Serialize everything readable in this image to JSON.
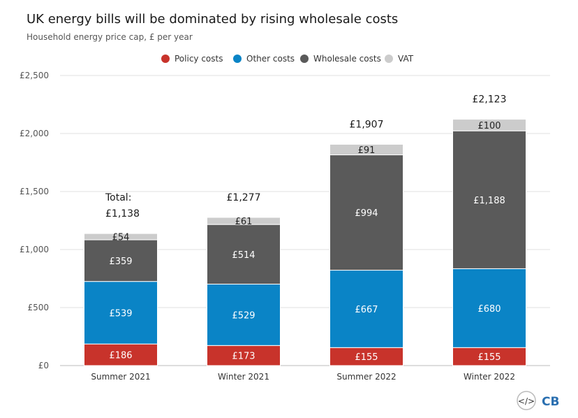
{
  "chart_data": {
    "type": "bar",
    "stacked": true,
    "title": "UK energy bills will be dominated by rising wholesale costs",
    "subtitle": "Household energy price cap, £ per year",
    "categories": [
      "Summer 2021",
      "Winter 2021",
      "Summer 2022",
      "Winter 2022"
    ],
    "series": [
      {
        "name": "Policy costs",
        "color": "#c8332b",
        "values": [
          186,
          173,
          155,
          155
        ],
        "labels": [
          "£186",
          "£173",
          "£155",
          "£155"
        ]
      },
      {
        "name": "Other costs",
        "color": "#0a84c6",
        "values": [
          539,
          529,
          667,
          680
        ],
        "labels": [
          "£539",
          "£529",
          "£667",
          "£680"
        ]
      },
      {
        "name": "Wholesale costs",
        "color": "#5a5a5a",
        "values": [
          359,
          514,
          994,
          1188
        ],
        "labels": [
          "£359",
          "£514",
          "£994",
          "£1,188"
        ]
      },
      {
        "name": "VAT",
        "color": "#cccccc",
        "values": [
          54,
          61,
          91,
          100
        ],
        "labels": [
          "£54",
          "£61",
          "£91",
          "£100"
        ]
      }
    ],
    "totals": [
      1138,
      1277,
      1907,
      2123
    ],
    "total_labels": [
      "£1,138",
      "£1,277",
      "£1,907",
      "£2,123"
    ],
    "total_prefix": "Total:",
    "yticks": [
      0,
      500,
      1000,
      1500,
      2000,
      2500
    ],
    "ytick_labels": [
      "£0",
      "£500",
      "£1,000",
      "£1,500",
      "£2,000",
      "£2,500"
    ],
    "ylim": [
      0,
      2500
    ],
    "grid": true,
    "legend_position": "top-center"
  },
  "logo": {
    "text": "CB",
    "icon": "code-brackets-icon"
  }
}
